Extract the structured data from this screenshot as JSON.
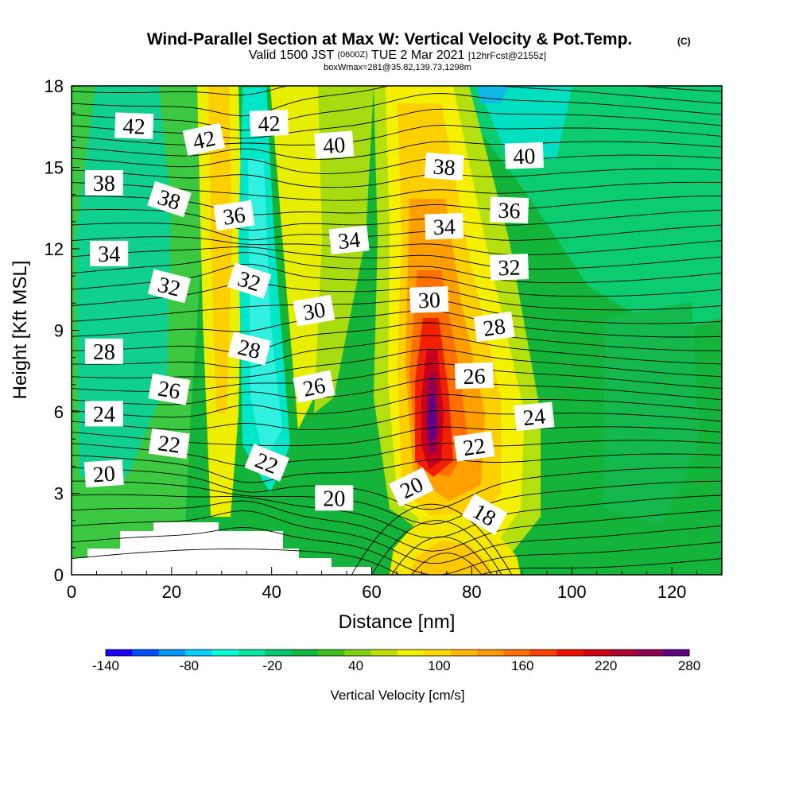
{
  "chart_data": {
    "type": "heatmap",
    "title": "Wind-Parallel Section at Max W: Vertical Velocity & Pot.Temp.",
    "title_mark": "(C)",
    "subtitle_parts": {
      "valid": "Valid 1500 JST",
      "utc": "(0600Z)",
      "date": "TUE 2 Mar 2021",
      "fcst": "[12hrFcst@2155z]"
    },
    "subtitle2": "boxWmax=281@35.82,139.73,1298m",
    "xlabel": "Distance [nm]",
    "ylabel": "Height [Kft MSL]",
    "xlim": [
      0,
      130
    ],
    "ylim": [
      0,
      18
    ],
    "xticks": [
      "0",
      "20",
      "40",
      "60",
      "80",
      "100",
      "120"
    ],
    "yticks": [
      "0",
      "3",
      "6",
      "9",
      "12",
      "15",
      "18"
    ],
    "colorbar": {
      "label": "Vertical Velocity [cm/s]",
      "tick_labels": [
        "-140",
        "-80",
        "-20",
        "40",
        "100",
        "160",
        "220",
        "280"
      ],
      "colors": [
        "#1a00ff",
        "#0050ff",
        "#0098ff",
        "#00d0ff",
        "#00ffd8",
        "#00e8a0",
        "#00c870",
        "#10b840",
        "#40c020",
        "#80d010",
        "#c0e000",
        "#f0f000",
        "#ffd800",
        "#ffb800",
        "#ff9800",
        "#ff7000",
        "#ff4000",
        "#f01000",
        "#d00010",
        "#b00030",
        "#900050",
        "#600080"
      ]
    },
    "contour_labels": [
      {
        "text": "42",
        "x": 12.5,
        "y": 16.5,
        "rot": 2
      },
      {
        "text": "42",
        "x": 26.5,
        "y": 16.0,
        "rot": -12
      },
      {
        "text": "42",
        "x": 39.5,
        "y": 16.6,
        "rot": -2
      },
      {
        "text": "40",
        "x": 52.5,
        "y": 15.8,
        "rot": -4
      },
      {
        "text": "38",
        "x": 74.5,
        "y": 15.0,
        "rot": 4
      },
      {
        "text": "40",
        "x": 90.5,
        "y": 15.4,
        "rot": -2
      },
      {
        "text": "38",
        "x": 6.5,
        "y": 14.4,
        "rot": 0
      },
      {
        "text": "38",
        "x": 19.5,
        "y": 13.8,
        "rot": 18
      },
      {
        "text": "36",
        "x": 32.5,
        "y": 13.2,
        "rot": -8
      },
      {
        "text": "36",
        "x": 87.5,
        "y": 13.4,
        "rot": 2
      },
      {
        "text": "34",
        "x": 55.5,
        "y": 12.3,
        "rot": -6
      },
      {
        "text": "34",
        "x": 74.5,
        "y": 12.8,
        "rot": -2
      },
      {
        "text": "34",
        "x": 7.5,
        "y": 11.8,
        "rot": 0
      },
      {
        "text": "32",
        "x": 87.5,
        "y": 11.3,
        "rot": -2
      },
      {
        "text": "32",
        "x": 19.5,
        "y": 10.6,
        "rot": 14
      },
      {
        "text": "32",
        "x": 35.5,
        "y": 10.8,
        "rot": 18
      },
      {
        "text": "30",
        "x": 71.5,
        "y": 10.1,
        "rot": -2
      },
      {
        "text": "30",
        "x": 48.5,
        "y": 9.7,
        "rot": -10
      },
      {
        "text": "28",
        "x": 84.5,
        "y": 9.1,
        "rot": -8
      },
      {
        "text": "28",
        "x": 6.5,
        "y": 8.2,
        "rot": 0
      },
      {
        "text": "28",
        "x": 35.5,
        "y": 8.3,
        "rot": 14
      },
      {
        "text": "26",
        "x": 80.5,
        "y": 7.3,
        "rot": -2
      },
      {
        "text": "26",
        "x": 48.5,
        "y": 6.9,
        "rot": -12
      },
      {
        "text": "26",
        "x": 19.5,
        "y": 6.8,
        "rot": 10
      },
      {
        "text": "24",
        "x": 92.5,
        "y": 5.8,
        "rot": -6
      },
      {
        "text": "24",
        "x": 6.5,
        "y": 5.9,
        "rot": 0
      },
      {
        "text": "22",
        "x": 19.5,
        "y": 4.8,
        "rot": 8
      },
      {
        "text": "22",
        "x": 80.5,
        "y": 4.7,
        "rot": -8
      },
      {
        "text": "22",
        "x": 39.0,
        "y": 4.1,
        "rot": 22
      },
      {
        "text": "20",
        "x": 6.5,
        "y": 3.7,
        "rot": -4
      },
      {
        "text": "20",
        "x": 68.0,
        "y": 3.2,
        "rot": -26
      },
      {
        "text": "20",
        "x": 52.5,
        "y": 2.8,
        "rot": 0
      },
      {
        "text": "18",
        "x": 82.5,
        "y": 2.2,
        "rot": 30
      }
    ]
  }
}
